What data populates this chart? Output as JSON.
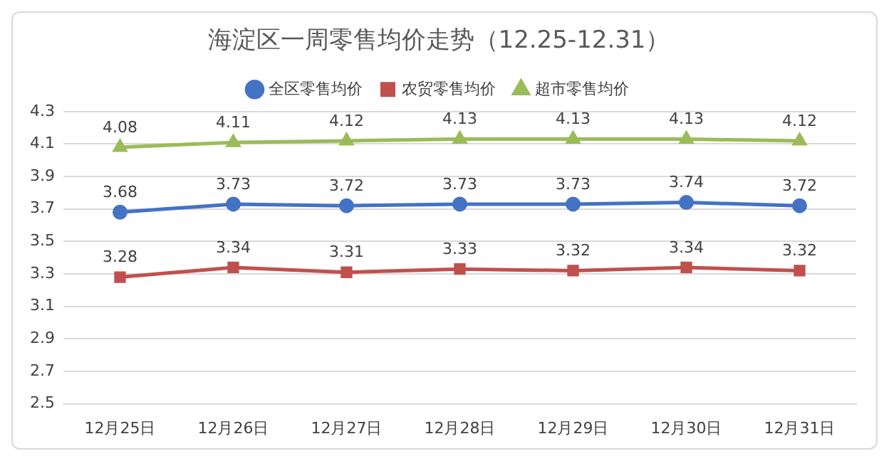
{
  "chart_data": {
    "type": "line",
    "title": "海淀区一周零售均价走势（12.25-12.31）",
    "categories": [
      "12月25日",
      "12月26日",
      "12月27日",
      "12月28日",
      "12月29日",
      "12月30日",
      "12月31日"
    ],
    "series": [
      {
        "name": "全区零售均价",
        "color": "#4472c4",
        "marker": "circle",
        "values": [
          3.68,
          3.73,
          3.72,
          3.73,
          3.73,
          3.74,
          3.72
        ]
      },
      {
        "name": "农贸零售均价",
        "color": "#c0504d",
        "marker": "square",
        "values": [
          3.28,
          3.34,
          3.31,
          3.33,
          3.32,
          3.34,
          3.32
        ]
      },
      {
        "name": "超市零售均价",
        "color": "#9bbb59",
        "marker": "triangle",
        "values": [
          4.08,
          4.11,
          4.12,
          4.13,
          4.13,
          4.13,
          4.12
        ]
      }
    ],
    "ylim": [
      2.5,
      4.3
    ],
    "yticks": [
      2.5,
      2.7,
      2.9,
      3.1,
      3.3,
      3.5,
      3.7,
      3.9,
      4.1,
      4.3
    ],
    "grid": "y",
    "legend": "top",
    "data_labels": true,
    "line_style": "solid"
  }
}
